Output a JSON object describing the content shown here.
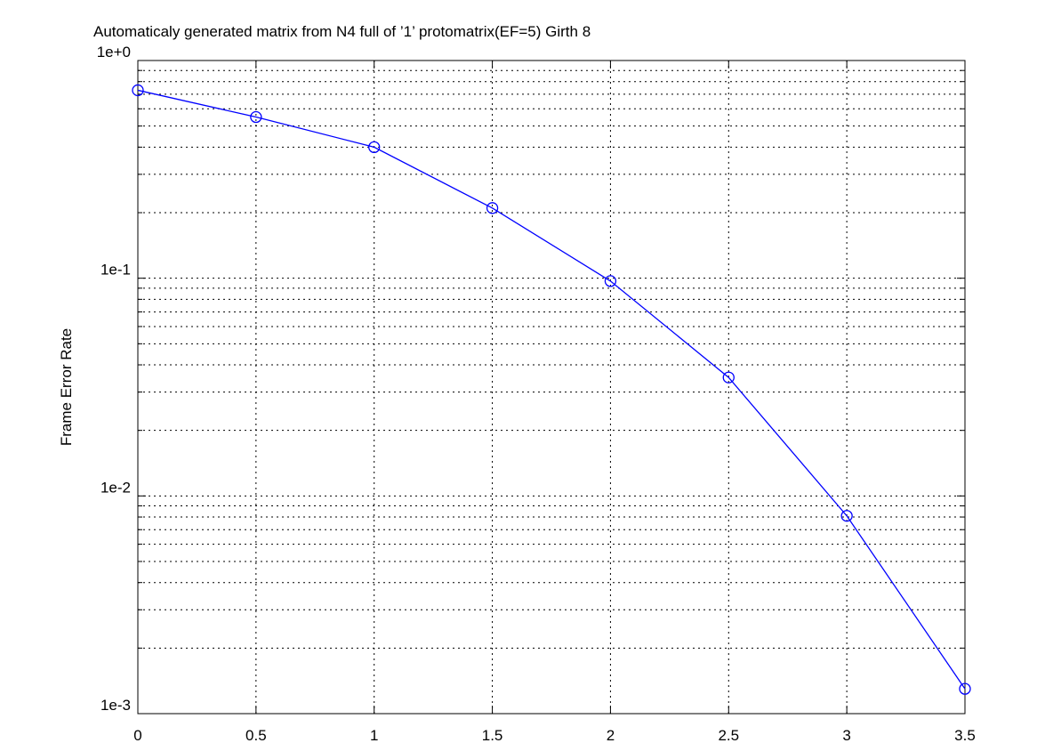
{
  "chart_data": {
    "type": "line",
    "title": "Automaticaly generated matrix from N4 full of ’1’ protomatrix(EF=5) Girth 8",
    "ylabel": "Frame Error Rate",
    "x": [
      0,
      0.5,
      1,
      1.5,
      2,
      2.5,
      3,
      3.5
    ],
    "series": [
      {
        "color": "#0000ff",
        "marker": "circle",
        "values": [
          0.73,
          0.55,
          0.4,
          0.21,
          0.097,
          0.035,
          0.0081,
          0.0013
        ]
      }
    ],
    "xlim": [
      0,
      3.5
    ],
    "xticks": [
      0,
      0.5,
      1,
      1.5,
      2,
      2.5,
      3,
      3.5
    ],
    "ylim": [
      0.001,
      1
    ],
    "yscale": "log",
    "yticks": [
      {
        "value": 1,
        "label": "1e+0"
      },
      {
        "value": 0.1,
        "label": "1e-1"
      },
      {
        "value": 0.01,
        "label": "1e-2"
      },
      {
        "value": 0.001,
        "label": "1e-3"
      }
    ],
    "minor_yticks": [
      0.2,
      0.3,
      0.4,
      0.5,
      0.6,
      0.7,
      0.8,
      0.9,
      0.02,
      0.03,
      0.04,
      0.05,
      0.06,
      0.07,
      0.08,
      0.09,
      0.002,
      0.003,
      0.004,
      0.005,
      0.006,
      0.007,
      0.008,
      0.009
    ],
    "grid": true
  }
}
